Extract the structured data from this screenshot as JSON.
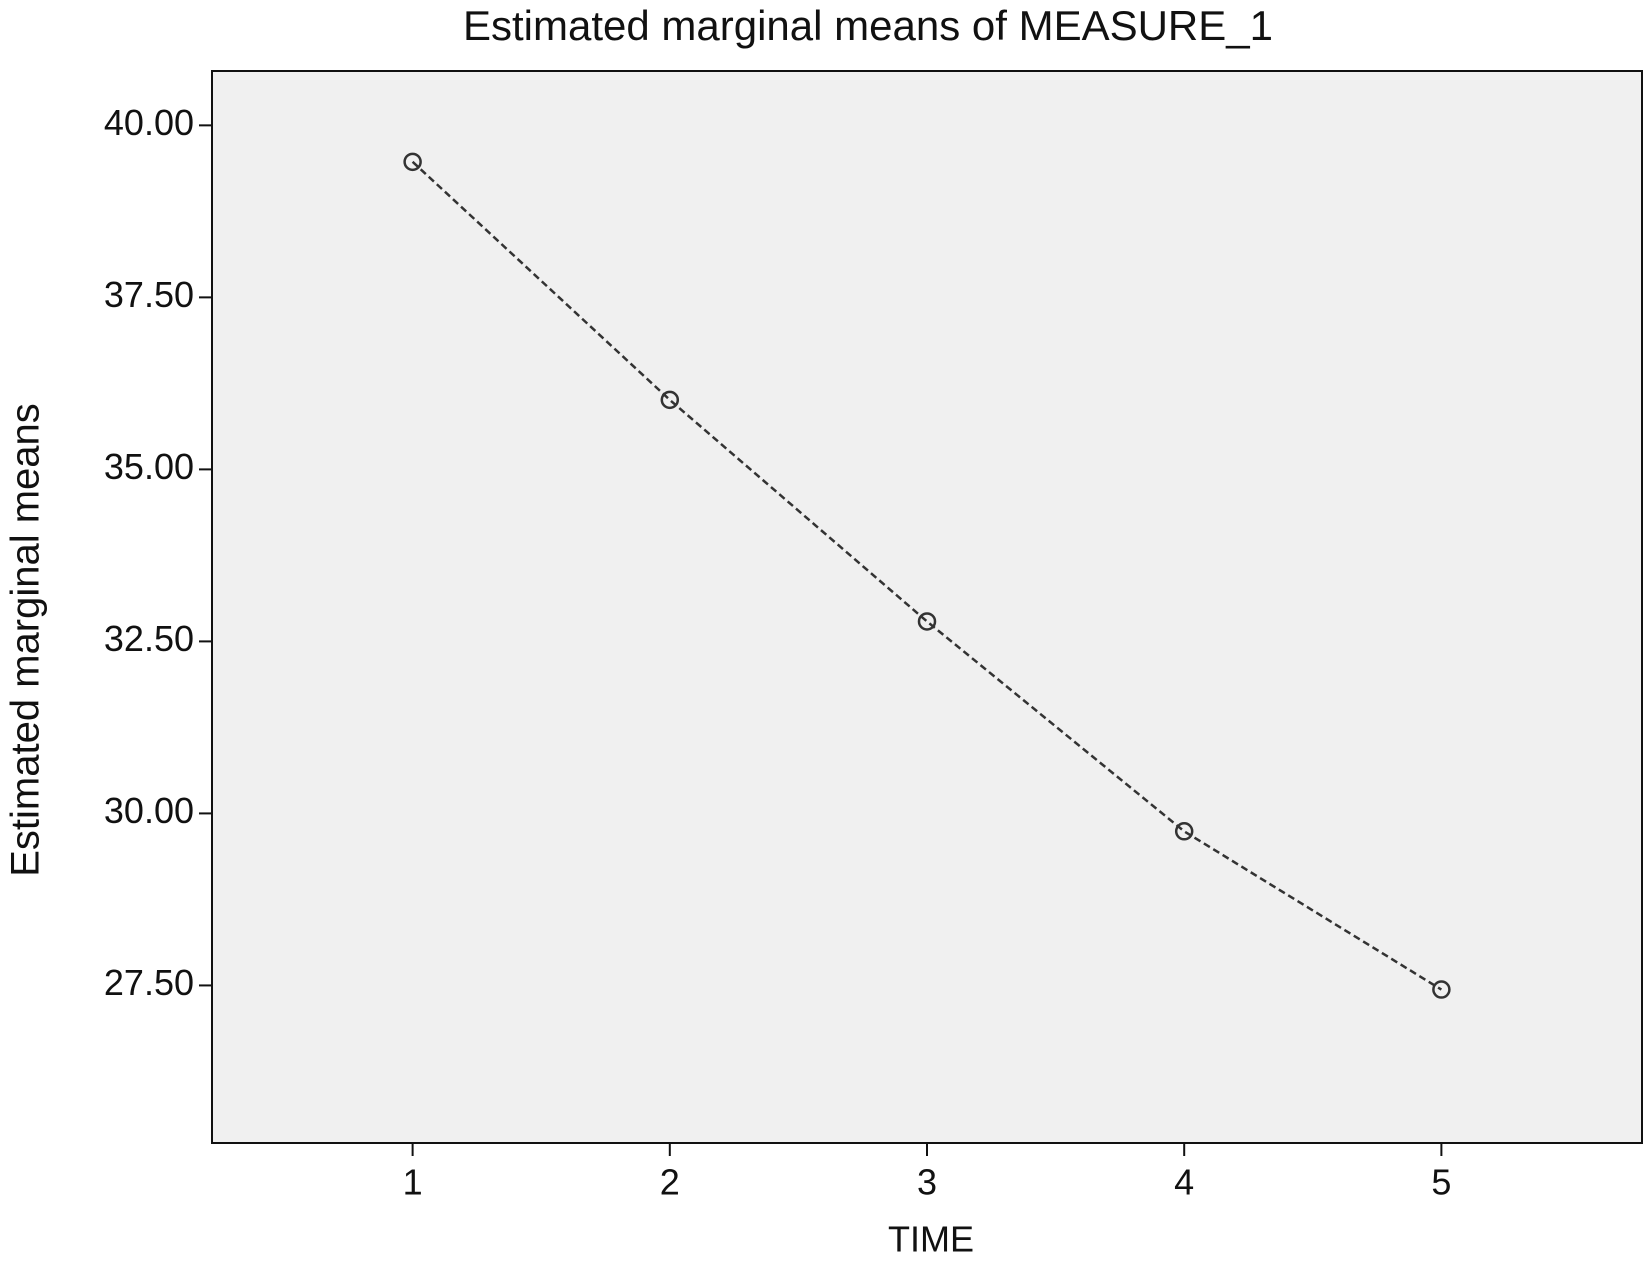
{
  "chart_data": {
    "type": "line",
    "title": "Estimated marginal means of MEASURE_1",
    "x_label": "TIME",
    "y_label": "Estimated marginal means",
    "x": [
      1,
      2,
      3,
      4,
      5
    ],
    "values": [
      39.47,
      36.01,
      32.79,
      29.74,
      27.44
    ],
    "color": "#333333",
    "xlim": [
      0.22,
      5.78
    ],
    "ylim": [
      25.21,
      40.79
    ],
    "xticks": [
      1,
      2,
      3,
      4,
      5
    ],
    "yticks": [
      {
        "value": 27.5,
        "label": "27.50"
      },
      {
        "value": 30,
        "label": "30.00"
      },
      {
        "value": 32.5,
        "label": "32.50"
      },
      {
        "value": 35,
        "label": "35.00"
      },
      {
        "value": 37.5,
        "label": "37.50"
      },
      {
        "value": 40,
        "label": "40.00"
      }
    ],
    "plot_background": "#f0f0f0"
  }
}
